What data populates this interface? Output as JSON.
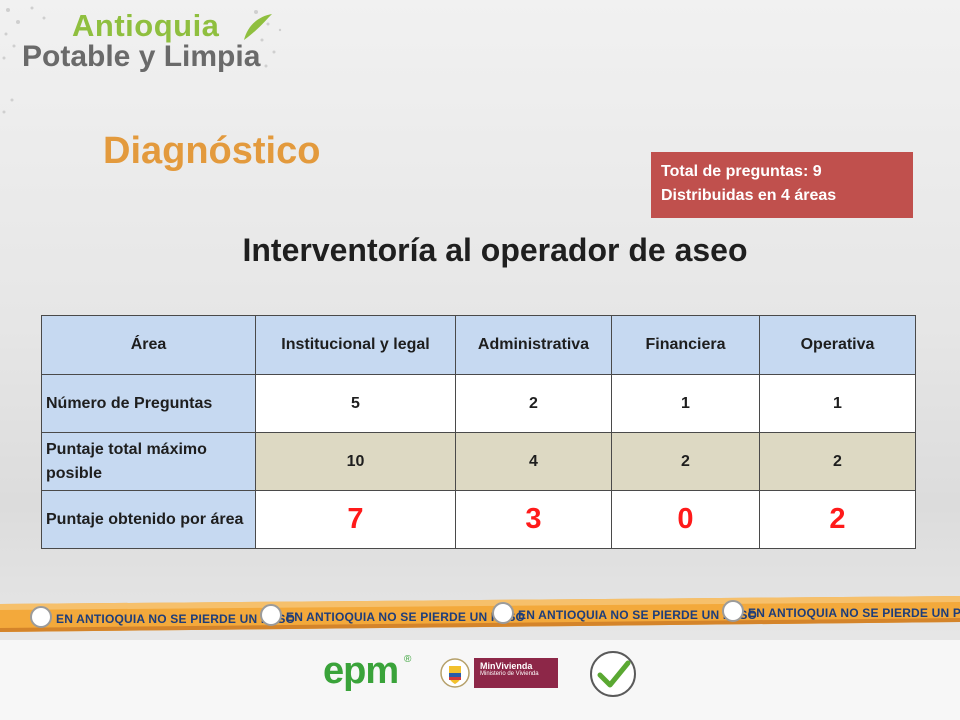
{
  "brand": {
    "line1": "Antioquia",
    "line2": "Potable y Limpia"
  },
  "section_title": "Diagnóstico",
  "info": {
    "line1": "Total de preguntas: 9",
    "line2": "Distribuidas en 4 áreas"
  },
  "main_title": "Interventoría al operador de aseo",
  "table": {
    "headers": [
      "Área",
      "Institucional y legal",
      "Administrativa",
      "Financiera",
      "Operativa"
    ],
    "rows": [
      {
        "label": "Número de Preguntas",
        "values": [
          "5",
          "2",
          "1",
          "1"
        ]
      },
      {
        "label": "Puntaje total máximo posible",
        "values": [
          "10",
          "4",
          "2",
          "2"
        ]
      },
      {
        "label": "Puntaje obtenido por área",
        "values": [
          "7",
          "3",
          "0",
          "2"
        ]
      }
    ]
  },
  "ribbon": {
    "text": "EN ANTIOQUIA NO SE PIERDE UN PESO"
  },
  "footer": {
    "epm": "epm",
    "epm_mark": "®",
    "minvivienda": "MinVivienda",
    "minvivienda_sub": "Ministerio de Vivienda"
  },
  "colors": {
    "accent_orange": "#e39a3d",
    "info_box_red": "#c0504d",
    "header_blue": "#c6d9f1",
    "row_tan": "#ddd9c3",
    "score_red": "#ff1a1a",
    "brand_green": "#8fbf3f",
    "epm_green": "#3aa33a",
    "minvivienda_wine": "#8d2748"
  },
  "icons": [
    "crest-icon",
    "education-seal-icon",
    "ribbon-seal-icon"
  ]
}
